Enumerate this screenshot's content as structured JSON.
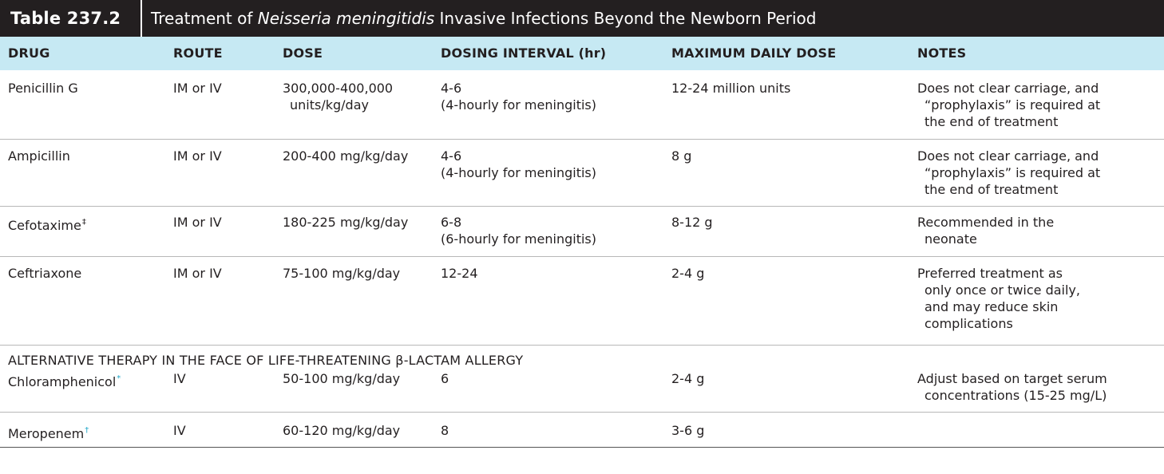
{
  "title": {
    "label": "Table 237.2",
    "text_before": "Treatment of ",
    "text_italic": "Neisseria meningitidis",
    "text_after": " Invasive Infections Beyond the Newborn Period"
  },
  "columns": {
    "drug": "DRUG",
    "route": "ROUTE",
    "dose": "DOSE",
    "interval": "DOSING INTERVAL (hr)",
    "max": "MAXIMUM DAILY DOSE",
    "notes": "NOTES"
  },
  "rows": [
    {
      "drug": "Penicillin G",
      "route": "IM or IV",
      "dose1": "300,000-400,000",
      "dose2": "units/kg/day",
      "int1": "4-6",
      "int2": "(4-hourly for meningitis)",
      "max": "12-24 million units",
      "notes1": "Does not clear carriage, and",
      "notes2": "“prophylaxis” is required at",
      "notes3": "the end of treatment"
    },
    {
      "drug": "Ampicillin",
      "route": "IM or IV",
      "dose1": "200-400 mg/kg/day",
      "int1": "4-6",
      "int2": "(4-hourly for meningitis)",
      "max": "8 g",
      "notes1": "Does not clear carriage, and",
      "notes2": "“prophylaxis” is required at",
      "notes3": "the end of treatment"
    },
    {
      "drug": "Cefotaxime",
      "drug_mark": "‡",
      "route": "IM or IV",
      "dose1": "180-225 mg/kg/day",
      "int1": "6-8",
      "int2": "(6-hourly for meningitis)",
      "max": "8-12 g",
      "notes1": "Recommended in the",
      "notes2": "neonate"
    },
    {
      "drug": "Ceftriaxone",
      "route": "IM or IV",
      "dose1": "75-100 mg/kg/day",
      "int1": "12-24",
      "max": "2-4 g",
      "notes1": "Preferred treatment as",
      "notes2": "only once or twice daily,",
      "notes3": "and may reduce skin",
      "notes4": "complications"
    }
  ],
  "alternative_heading_before": "ALTERNATIVE THERAPY IN THE FACE OF LIFE-THREATENING ",
  "alternative_heading_symbol": "β",
  "alternative_heading_after": "-LACTAM ALLERGY",
  "alt_rows": [
    {
      "drug": "Chloramphenicol",
      "drug_mark": "*",
      "route": "IV",
      "dose1": "50-100 mg/kg/day",
      "int1": "6",
      "max": "2-4 g",
      "notes1": "Adjust based on target serum",
      "notes2": "concentrations (15-25 mg/L)"
    },
    {
      "drug": "Meropenem",
      "drug_mark": "†",
      "route": "IV",
      "dose1": "60-120 mg/kg/day",
      "int1": "8",
      "max": "3-6 g"
    }
  ],
  "colors": {
    "title_bg": "#231f20",
    "header_bg": "#c6e9f3",
    "footnote_mark": "#1fa6c8"
  }
}
